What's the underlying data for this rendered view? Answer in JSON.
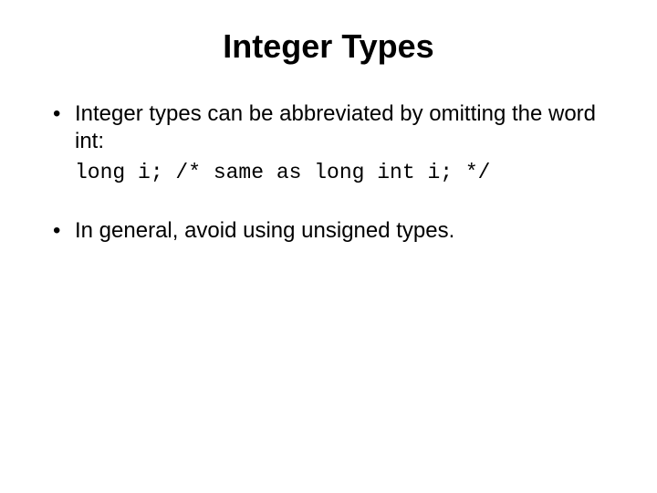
{
  "title": "Integer Types",
  "bullets": {
    "first": "Integer types can be abbreviated by omitting the word int:",
    "code": "long i; /* same as long int i; */",
    "second": "In general, avoid using unsigned types."
  },
  "colors": {
    "background": "#ffffff",
    "text": "#000000"
  },
  "fonts": {
    "title_size": 36,
    "body_size": 24,
    "code_size": 23,
    "title_weight": "bold",
    "body_family": "Arial",
    "code_family": "Courier New"
  }
}
